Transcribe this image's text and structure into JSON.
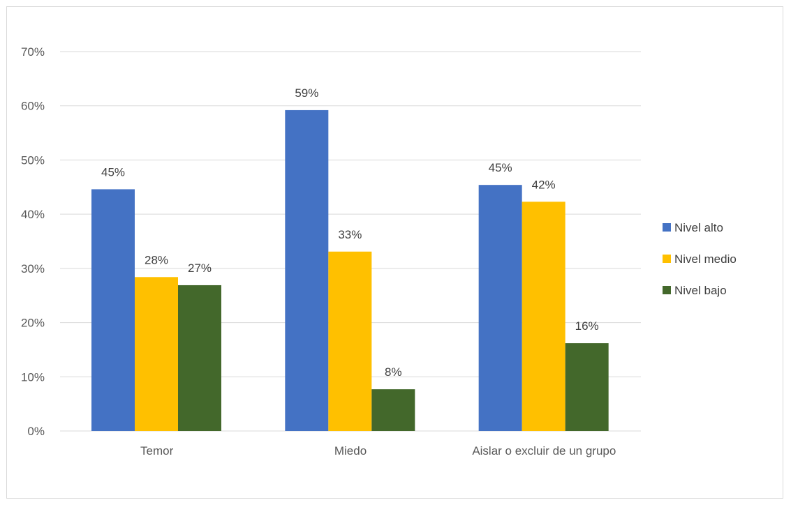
{
  "chart_data": {
    "type": "bar",
    "title": "",
    "xlabel": "",
    "ylabel": "",
    "categories": [
      "Temor",
      "Miedo",
      "Aislar o excluir de un grupo"
    ],
    "series": [
      {
        "name": "Nivel alto",
        "color": "#4472C4",
        "values": [
          44.6,
          59.2,
          45.4
        ],
        "labels": [
          "45%",
          "59%",
          "45%"
        ]
      },
      {
        "name": "Nivel medio",
        "color": "#FFC000",
        "values": [
          28.4,
          33.1,
          42.3
        ],
        "labels": [
          "28%",
          "33%",
          "42%"
        ]
      },
      {
        "name": "Nivel bajo",
        "color": "#43682B",
        "values": [
          26.9,
          7.7,
          16.2
        ],
        "labels": [
          "27%",
          "8%",
          "16%"
        ]
      }
    ],
    "ylim": [
      0,
      70
    ],
    "yticks": [
      {
        "value": 0,
        "label": "0%"
      },
      {
        "value": 10,
        "label": "10%"
      },
      {
        "value": 20,
        "label": "20%"
      },
      {
        "value": 30,
        "label": "30%"
      },
      {
        "value": 40,
        "label": "40%"
      },
      {
        "value": 50,
        "label": "50%"
      },
      {
        "value": 60,
        "label": "60%"
      },
      {
        "value": 70,
        "label": "70%"
      }
    ],
    "grid": true,
    "gridColor": "#d9d9d9",
    "legendPosition": "right"
  }
}
